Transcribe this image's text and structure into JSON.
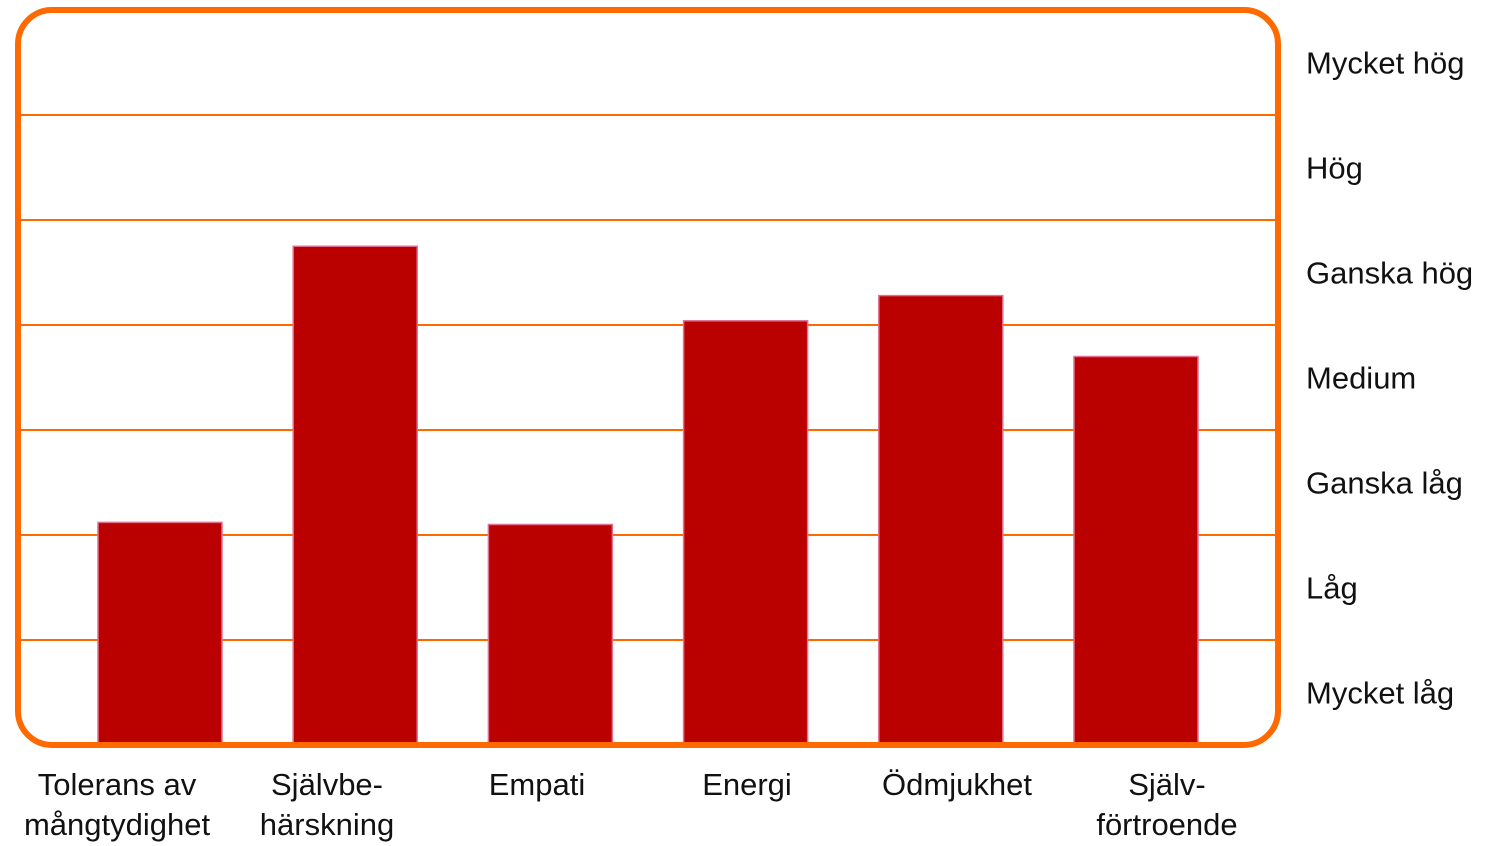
{
  "chart_data": {
    "type": "bar",
    "categories": [
      "Tolerans av\nmångtydighet",
      "Självbe-\nhärskning",
      "Empati",
      "Energi",
      "Ödmjukhet",
      "Själv-\nförtroende"
    ],
    "values": [
      2.12,
      4.75,
      2.1,
      4.04,
      4.28,
      3.7
    ],
    "color": "#bb0000",
    "ylim": [
      0,
      7
    ],
    "yticks": [
      {
        "value": 0.5,
        "label": "Mycket låg"
      },
      {
        "value": 1.5,
        "label": "Låg"
      },
      {
        "value": 2.5,
        "label": "Ganska låg"
      },
      {
        "value": 3.5,
        "label": "Medium"
      },
      {
        "value": 4.5,
        "label": "Ganska hög"
      },
      {
        "value": 5.5,
        "label": "Hög"
      },
      {
        "value": 6.5,
        "label": "Mycket hög"
      }
    ],
    "grid": true
  }
}
